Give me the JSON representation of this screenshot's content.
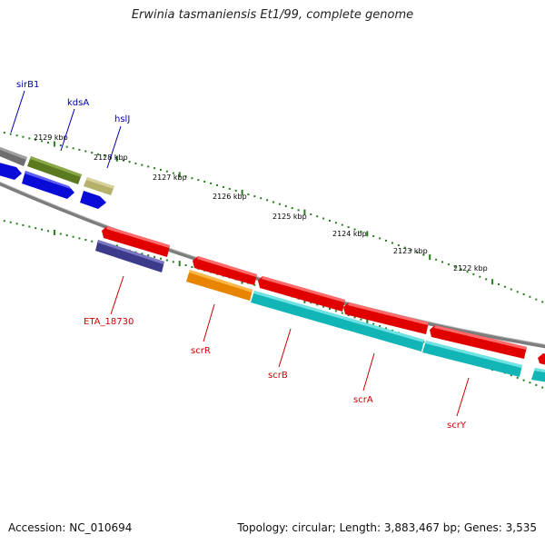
{
  "title": "Erwinia tasmaniensis Et1/99, complete genome",
  "accession": "Accession: NC_010694",
  "summary": "Topology: circular; Length: 3,883,467 bp; Genes: 3,535",
  "colors": {
    "backbone": "#8a8a8a",
    "tick": "#2a7a1e",
    "forward_label": "#0000aa",
    "reverse_label": "#cc0000"
  },
  "scale_labels": [
    "2129 kbp",
    "2128 kbp",
    "2127 kbp",
    "2126 kbp",
    "2125 kbp",
    "2124 kbp",
    "2123 kbp",
    "2122 kbp"
  ],
  "forward_genes": [
    {
      "name": "sirB1",
      "color": "#0000aa"
    },
    {
      "name": "kdsA",
      "color": "#0000aa"
    },
    {
      "name": "hslJ",
      "color": "#0000aa"
    }
  ],
  "reverse_genes": [
    {
      "name": "ETA_18730",
      "color": "#cc0000"
    },
    {
      "name": "scrR",
      "color": "#cc0000"
    },
    {
      "name": "scrB",
      "color": "#cc0000"
    },
    {
      "name": "scrA",
      "color": "#cc0000"
    },
    {
      "name": "scrY",
      "color": "#cc0000"
    }
  ]
}
